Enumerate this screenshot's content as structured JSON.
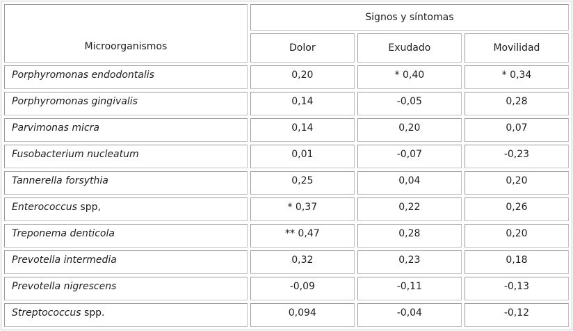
{
  "table": {
    "microorganisms_header": "Microorganismos",
    "group_header": "Signos y síntomas",
    "columns": [
      "Dolor",
      "Exudado",
      "Movilidad"
    ],
    "rows": [
      {
        "name": "Porphyromonas endodontalis",
        "suffix": "",
        "values": [
          "0,20",
          "* 0,40",
          "* 0,34"
        ]
      },
      {
        "name": "Porphyromonas gingivalis",
        "suffix": "",
        "values": [
          "0,14",
          "-0,05",
          "0,28"
        ]
      },
      {
        "name": "Parvimonas micra",
        "suffix": "",
        "values": [
          "0,14",
          "0,20",
          "0,07"
        ]
      },
      {
        "name": "Fusobacterium nucleatum",
        "suffix": "",
        "values": [
          "0,01",
          "-0,07",
          "-0,23"
        ]
      },
      {
        "name": "Tannerella forsythia",
        "suffix": "",
        "values": [
          "0,25",
          "0,04",
          "0,20"
        ]
      },
      {
        "name": "Enterococcus",
        "suffix": " spp,",
        "values": [
          "* 0,37",
          "0,22",
          "0,26"
        ]
      },
      {
        "name": "Treponema denticola",
        "suffix": "",
        "values": [
          "** 0,47",
          "0,28",
          "0,20"
        ]
      },
      {
        "name": "Prevotella intermedia",
        "suffix": "",
        "values": [
          "0,32",
          "0,23",
          "0,18"
        ]
      },
      {
        "name": "Prevotella nigrescens",
        "suffix": "",
        "values": [
          "-0,09",
          "-0,11",
          "-0,13"
        ]
      },
      {
        "name": "Streptococcus",
        "suffix": " spp.",
        "values": [
          "0,094",
          "-0,04",
          "-0,12"
        ]
      }
    ]
  }
}
